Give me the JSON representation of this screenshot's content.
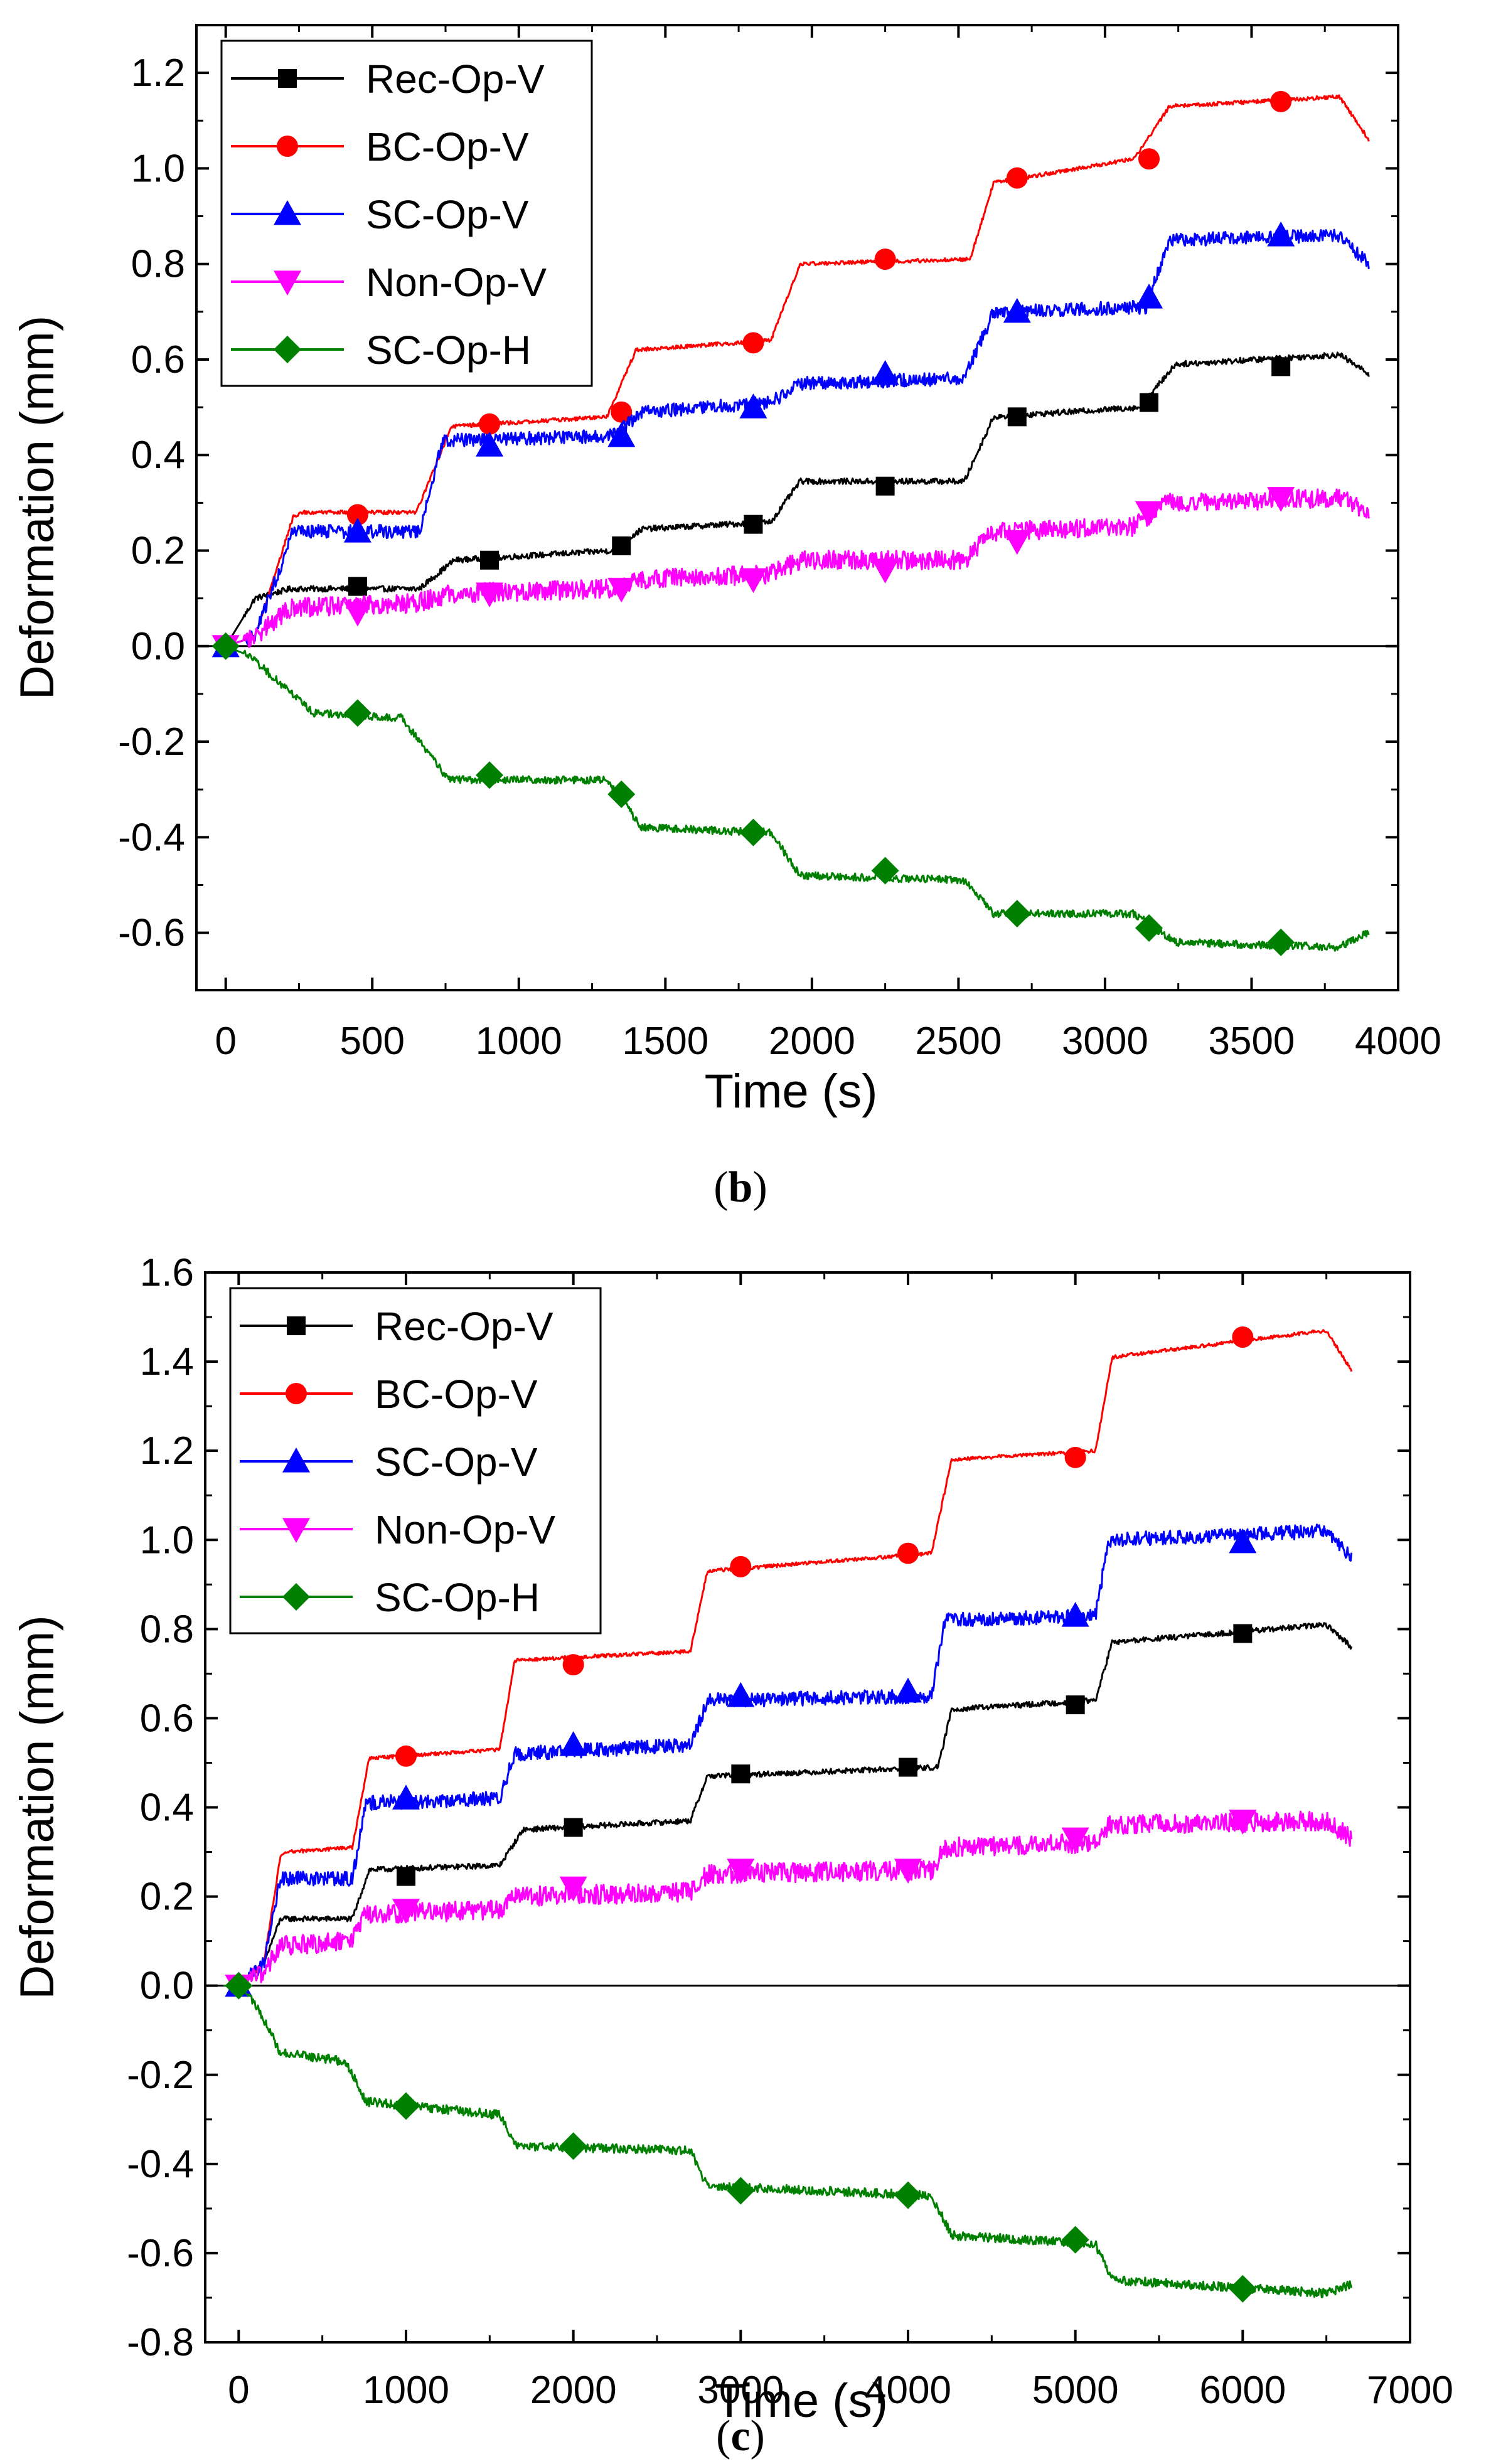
{
  "chart_data": [
    {
      "panel_label": "b",
      "type": "line",
      "xlabel": "Time (s)",
      "ylabel": "Deformation (mm)",
      "xlim": [
        -100,
        4000
      ],
      "ylim": [
        -0.72,
        1.3
      ],
      "x_ticks": [
        0,
        500,
        1000,
        1500,
        2000,
        2500,
        3000,
        3500,
        4000
      ],
      "y_ticks": [
        -0.6,
        -0.4,
        -0.2,
        0.0,
        0.2,
        0.4,
        0.6,
        0.8,
        1.0,
        1.2
      ],
      "x_tick_labels": [
        "0",
        "500",
        "1000",
        "1500",
        "2000",
        "2500",
        "3000",
        "3500",
        "4000"
      ],
      "y_tick_labels": [
        "-0.6",
        "-0.4",
        "-0.2",
        "0.0",
        "0.2",
        "0.4",
        "0.6",
        "0.8",
        "1.0",
        "1.2"
      ],
      "zero_line": true,
      "legend_position": "top-left",
      "series": [
        {
          "name": "Rec-Op-V",
          "color": "#000000",
          "marker": "square",
          "noise": 0.006,
          "steps": [
            [
              0,
              0
            ],
            [
              100,
              0.1
            ],
            [
              220,
              0.12
            ],
            [
              660,
              0.12
            ],
            [
              780,
              0.18
            ],
            [
              1320,
              0.2
            ],
            [
              1420,
              0.245
            ],
            [
              1860,
              0.26
            ],
            [
              1960,
              0.345
            ],
            [
              2520,
              0.345
            ],
            [
              2620,
              0.48
            ],
            [
              3120,
              0.5
            ],
            [
              3240,
              0.59
            ],
            [
              3800,
              0.61
            ],
            [
              3900,
              0.57
            ]
          ],
          "markers": [
            [
              0,
              0
            ],
            [
              450,
              0.125
            ],
            [
              900,
              0.18
            ],
            [
              1350,
              0.21
            ],
            [
              1800,
              0.255
            ],
            [
              2250,
              0.335
            ],
            [
              2700,
              0.48
            ],
            [
              3150,
              0.51
            ],
            [
              3600,
              0.585
            ]
          ]
        },
        {
          "name": "BC-Op-V",
          "color": "#ff0000",
          "marker": "circle",
          "noise": 0.004,
          "steps": [
            [
              0,
              0
            ],
            [
              100,
              0.02
            ],
            [
              230,
              0.27
            ],
            [
              260,
              0.28
            ],
            [
              650,
              0.28
            ],
            [
              770,
              0.46
            ],
            [
              1300,
              0.48
            ],
            [
              1400,
              0.62
            ],
            [
              1860,
              0.64
            ],
            [
              1960,
              0.8
            ],
            [
              2540,
              0.81
            ],
            [
              2620,
              0.97
            ],
            [
              3100,
              1.02
            ],
            [
              3220,
              1.13
            ],
            [
              3800,
              1.15
            ],
            [
              3900,
              1.06
            ]
          ],
          "markers": [
            [
              0,
              0
            ],
            [
              450,
              0.275
            ],
            [
              900,
              0.465
            ],
            [
              1350,
              0.49
            ],
            [
              1800,
              0.635
            ],
            [
              2250,
              0.81
            ],
            [
              2700,
              0.98
            ],
            [
              3150,
              1.02
            ],
            [
              3600,
              1.14
            ]
          ]
        },
        {
          "name": "SC-Op-V",
          "color": "#0000ff",
          "marker": "triangle-up",
          "noise": 0.014,
          "steps": [
            [
              0,
              0
            ],
            [
              100,
              0.02
            ],
            [
              230,
              0.24
            ],
            [
              660,
              0.24
            ],
            [
              740,
              0.43
            ],
            [
              1320,
              0.44
            ],
            [
              1420,
              0.49
            ],
            [
              1860,
              0.51
            ],
            [
              1960,
              0.55
            ],
            [
              2520,
              0.56
            ],
            [
              2620,
              0.7
            ],
            [
              3140,
              0.71
            ],
            [
              3220,
              0.85
            ],
            [
              3800,
              0.86
            ],
            [
              3900,
              0.8
            ]
          ],
          "markers": [
            [
              0,
              0
            ],
            [
              450,
              0.24
            ],
            [
              900,
              0.42
            ],
            [
              1350,
              0.44
            ],
            [
              1800,
              0.5
            ],
            [
              2250,
              0.57
            ],
            [
              2700,
              0.7
            ],
            [
              3150,
              0.73
            ],
            [
              3600,
              0.86
            ]
          ]
        },
        {
          "name": "Non-Op-V",
          "color": "#ff00ff",
          "marker": "triangle-down",
          "noise": 0.02,
          "steps": [
            [
              0,
              0
            ],
            [
              100,
              0.02
            ],
            [
              220,
              0.08
            ],
            [
              650,
              0.09
            ],
            [
              770,
              0.11
            ],
            [
              1320,
              0.12
            ],
            [
              1420,
              0.14
            ],
            [
              1860,
              0.15
            ],
            [
              1960,
              0.18
            ],
            [
              2520,
              0.18
            ],
            [
              2620,
              0.24
            ],
            [
              3100,
              0.25
            ],
            [
              3200,
              0.3
            ],
            [
              3800,
              0.31
            ],
            [
              3900,
              0.28
            ]
          ],
          "markers": [
            [
              0,
              0
            ],
            [
              450,
              0.07
            ],
            [
              900,
              0.11
            ],
            [
              1350,
              0.12
            ],
            [
              1800,
              0.14
            ],
            [
              2250,
              0.16
            ],
            [
              2700,
              0.22
            ],
            [
              3150,
              0.28
            ],
            [
              3600,
              0.31
            ]
          ]
        },
        {
          "name": "SC-Op-H",
          "color": "#008000",
          "marker": "diamond",
          "noise": 0.008,
          "steps": [
            [
              0,
              0
            ],
            [
              80,
              -0.02
            ],
            [
              300,
              -0.14
            ],
            [
              600,
              -0.15
            ],
            [
              760,
              -0.28
            ],
            [
              1300,
              -0.28
            ],
            [
              1420,
              -0.38
            ],
            [
              1860,
              -0.39
            ],
            [
              1960,
              -0.48
            ],
            [
              2520,
              -0.49
            ],
            [
              2620,
              -0.56
            ],
            [
              3100,
              -0.56
            ],
            [
              3240,
              -0.62
            ],
            [
              3800,
              -0.63
            ],
            [
              3900,
              -0.6
            ]
          ],
          "markers": [
            [
              0,
              0
            ],
            [
              450,
              -0.14
            ],
            [
              900,
              -0.27
            ],
            [
              1350,
              -0.31
            ],
            [
              1800,
              -0.39
            ],
            [
              2250,
              -0.47
            ],
            [
              2700,
              -0.56
            ],
            [
              3150,
              -0.59
            ],
            [
              3600,
              -0.62
            ]
          ]
        }
      ]
    },
    {
      "panel_label": "c",
      "type": "line",
      "xlabel": "Time (s)",
      "ylabel": "Deformation (mm)",
      "xlim": [
        -200,
        7000
      ],
      "ylim": [
        -0.8,
        1.6
      ],
      "x_ticks": [
        0,
        1000,
        2000,
        3000,
        4000,
        5000,
        6000,
        7000
      ],
      "y_ticks": [
        -0.8,
        -0.6,
        -0.4,
        -0.2,
        0.0,
        0.2,
        0.4,
        0.6,
        0.8,
        1.0,
        1.2,
        1.4,
        1.6
      ],
      "x_tick_labels": [
        "0",
        "1000",
        "2000",
        "3000",
        "4000",
        "5000",
        "6000",
        "7000"
      ],
      "y_tick_labels": [
        "-0.8",
        "-0.6",
        "-0.4",
        "-0.2",
        "0.0",
        "0.2",
        "0.4",
        "0.6",
        "0.8",
        "1.0",
        "1.2",
        "1.4",
        "1.6"
      ],
      "zero_line": true,
      "legend_position": "top-left",
      "series": [
        {
          "name": "Rec-Op-V",
          "color": "#000000",
          "marker": "square",
          "noise": 0.006,
          "steps": [
            [
              0,
              0
            ],
            [
              150,
              0.05
            ],
            [
              250,
              0.15
            ],
            [
              680,
              0.15
            ],
            [
              780,
              0.26
            ],
            [
              1560,
              0.27
            ],
            [
              1700,
              0.35
            ],
            [
              2700,
              0.37
            ],
            [
              2800,
              0.47
            ],
            [
              4180,
              0.49
            ],
            [
              4260,
              0.62
            ],
            [
              5120,
              0.64
            ],
            [
              5220,
              0.77
            ],
            [
              6500,
              0.81
            ],
            [
              6650,
              0.76
            ]
          ],
          "markers": [
            [
              0,
              0
            ],
            [
              1000,
              0.245
            ],
            [
              2000,
              0.355
            ],
            [
              3000,
              0.475
            ],
            [
              4000,
              0.49
            ],
            [
              5000,
              0.63
            ],
            [
              6000,
              0.79
            ]
          ]
        },
        {
          "name": "BC-Op-V",
          "color": "#ff0000",
          "marker": "circle",
          "noise": 0.004,
          "steps": [
            [
              0,
              0
            ],
            [
              150,
              0.05
            ],
            [
              250,
              0.29
            ],
            [
              300,
              0.3
            ],
            [
              680,
              0.31
            ],
            [
              780,
              0.51
            ],
            [
              1560,
              0.53
            ],
            [
              1650,
              0.73
            ],
            [
              2700,
              0.75
            ],
            [
              2800,
              0.93
            ],
            [
              4140,
              0.97
            ],
            [
              4260,
              1.18
            ],
            [
              5120,
              1.2
            ],
            [
              5220,
              1.41
            ],
            [
              6500,
              1.47
            ],
            [
              6650,
              1.38
            ]
          ],
          "markers": [
            [
              0,
              0
            ],
            [
              1000,
              0.515
            ],
            [
              2000,
              0.72
            ],
            [
              3000,
              0.94
            ],
            [
              4000,
              0.97
            ],
            [
              5000,
              1.185
            ],
            [
              6000,
              1.455
            ]
          ]
        },
        {
          "name": "SC-Op-V",
          "color": "#0000ff",
          "marker": "triangle-up",
          "noise": 0.016,
          "steps": [
            [
              0,
              0
            ],
            [
              150,
              0.05
            ],
            [
              250,
              0.24
            ],
            [
              680,
              0.24
            ],
            [
              760,
              0.41
            ],
            [
              1560,
              0.42
            ],
            [
              1650,
              0.52
            ],
            [
              2700,
              0.54
            ],
            [
              2800,
              0.64
            ],
            [
              4140,
              0.65
            ],
            [
              4220,
              0.82
            ],
            [
              5120,
              0.83
            ],
            [
              5200,
              1.0
            ],
            [
              6500,
              1.02
            ],
            [
              6650,
              0.96
            ]
          ],
          "markers": [
            [
              0,
              0
            ],
            [
              1000,
              0.42
            ],
            [
              2000,
              0.54
            ],
            [
              3000,
              0.65
            ],
            [
              4000,
              0.66
            ],
            [
              5000,
              0.83
            ],
            [
              6000,
              0.995
            ]
          ]
        },
        {
          "name": "Non-Op-V",
          "color": "#ff00ff",
          "marker": "triangle-down",
          "noise": 0.022,
          "steps": [
            [
              0,
              0
            ],
            [
              150,
              0.03
            ],
            [
              250,
              0.09
            ],
            [
              680,
              0.1
            ],
            [
              760,
              0.16
            ],
            [
              1560,
              0.17
            ],
            [
              1650,
              0.2
            ],
            [
              2700,
              0.21
            ],
            [
              2800,
              0.25
            ],
            [
              4140,
              0.26
            ],
            [
              4220,
              0.31
            ],
            [
              5120,
              0.32
            ],
            [
              5200,
              0.36
            ],
            [
              6500,
              0.37
            ],
            [
              6650,
              0.33
            ]
          ],
          "markers": [
            [
              0,
              0
            ],
            [
              1000,
              0.17
            ],
            [
              2000,
              0.22
            ],
            [
              3000,
              0.26
            ],
            [
              4000,
              0.26
            ],
            [
              5000,
              0.33
            ],
            [
              6000,
              0.37
            ]
          ]
        },
        {
          "name": "SC-Op-H",
          "color": "#008000",
          "marker": "diamond",
          "noise": 0.01,
          "steps": [
            [
              0,
              0
            ],
            [
              100,
              -0.04
            ],
            [
              250,
              -0.15
            ],
            [
              640,
              -0.17
            ],
            [
              760,
              -0.26
            ],
            [
              1560,
              -0.29
            ],
            [
              1660,
              -0.36
            ],
            [
              2700,
              -0.37
            ],
            [
              2800,
              -0.45
            ],
            [
              4140,
              -0.47
            ],
            [
              4260,
              -0.56
            ],
            [
              5120,
              -0.58
            ],
            [
              5220,
              -0.66
            ],
            [
              6500,
              -0.69
            ],
            [
              6650,
              -0.67
            ]
          ],
          "markers": [
            [
              0,
              0
            ],
            [
              1000,
              -0.27
            ],
            [
              2000,
              -0.36
            ],
            [
              3000,
              -0.46
            ],
            [
              4000,
              -0.47
            ],
            [
              5000,
              -0.57
            ],
            [
              6000,
              -0.68
            ]
          ]
        }
      ]
    }
  ]
}
